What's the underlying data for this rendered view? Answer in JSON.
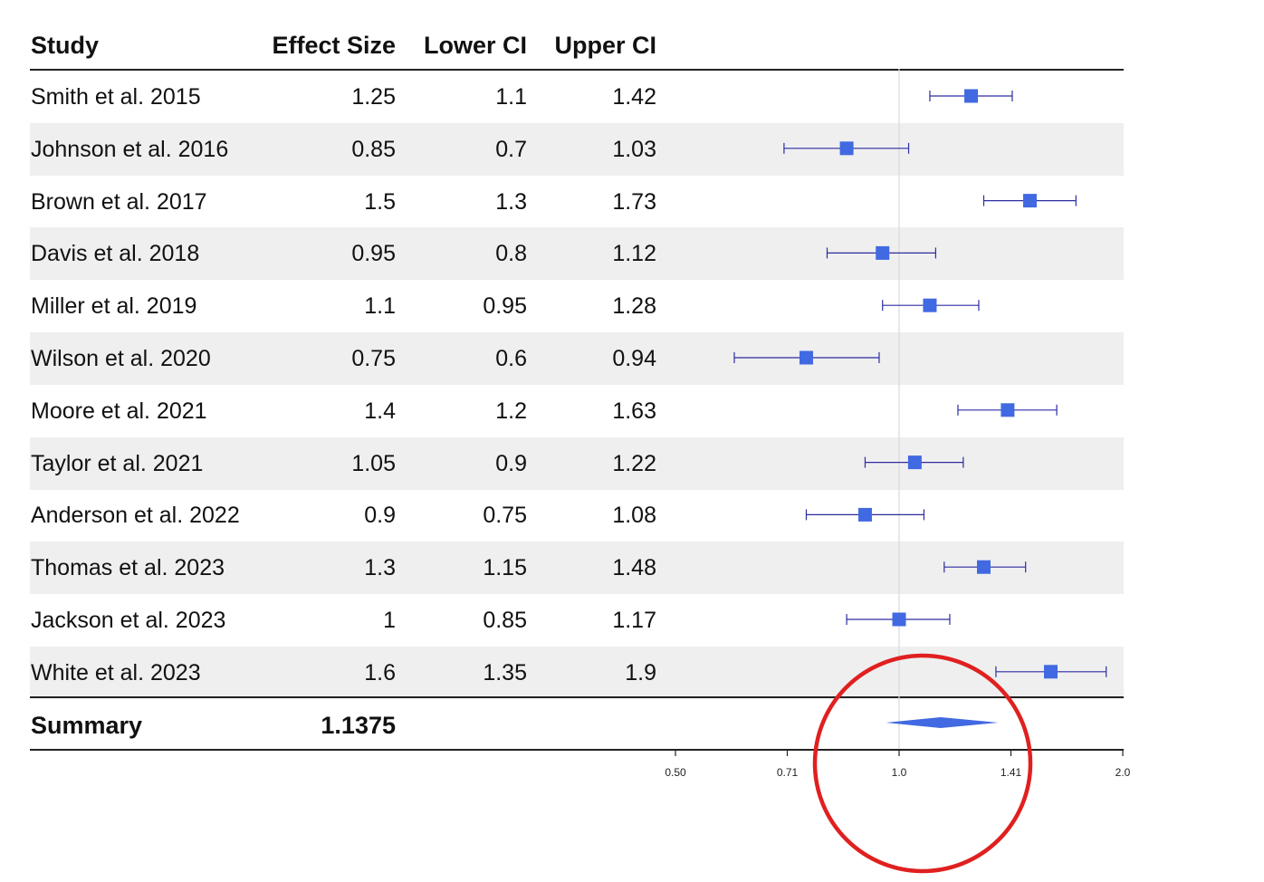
{
  "table": {
    "headers": {
      "study": "Study",
      "effect": "Effect Size",
      "lower": "Lower CI",
      "upper": "Upper CI"
    },
    "rows": [
      {
        "study": "Smith et al. 2015",
        "effect": "1.25",
        "lower": "1.1",
        "upper": "1.42"
      },
      {
        "study": "Johnson et al. 2016",
        "effect": "0.85",
        "lower": "0.7",
        "upper": "1.03"
      },
      {
        "study": "Brown et al. 2017",
        "effect": "1.5",
        "lower": "1.3",
        "upper": "1.73"
      },
      {
        "study": "Davis et al. 2018",
        "effect": "0.95",
        "lower": "0.8",
        "upper": "1.12"
      },
      {
        "study": "Miller et al. 2019",
        "effect": "1.1",
        "lower": "0.95",
        "upper": "1.28"
      },
      {
        "study": "Wilson et al. 2020",
        "effect": "0.75",
        "lower": "0.6",
        "upper": "0.94"
      },
      {
        "study": "Moore et al. 2021",
        "effect": "1.4",
        "lower": "1.2",
        "upper": "1.63"
      },
      {
        "study": "Taylor et al. 2021",
        "effect": "1.05",
        "lower": "0.9",
        "upper": "1.22"
      },
      {
        "study": "Anderson et al. 2022",
        "effect": "0.9",
        "lower": "0.75",
        "upper": "1.08"
      },
      {
        "study": "Thomas et al. 2023",
        "effect": "1.3",
        "lower": "1.15",
        "upper": "1.48"
      },
      {
        "study": "Jackson et al. 2023",
        "effect": "1",
        "lower": "0.85",
        "upper": "1.17"
      },
      {
        "study": "White et al. 2023",
        "effect": "1.6",
        "lower": "1.35",
        "upper": "1.9"
      }
    ],
    "summary": {
      "label": "Summary",
      "effect": "1.1375"
    }
  },
  "chart_data": {
    "type": "forest",
    "title": "",
    "xlabel": "",
    "ylabel": "",
    "x_scale": "log",
    "xlim": [
      0.5,
      2.0
    ],
    "x_ticks": [
      "0.50",
      "0.71",
      "1.0",
      "1.41",
      "2.0"
    ],
    "x_tick_values": [
      0.5,
      0.7071,
      1.0,
      1.4142,
      2.0
    ],
    "reference_line": 1.0,
    "categories": [
      "Smith et al. 2015",
      "Johnson et al. 2016",
      "Brown et al. 2017",
      "Davis et al. 2018",
      "Miller et al. 2019",
      "Wilson et al. 2020",
      "Moore et al. 2021",
      "Taylor et al. 2021",
      "Anderson et al. 2022",
      "Thomas et al. 2023",
      "Jackson et al. 2023",
      "White et al. 2023"
    ],
    "effect": [
      1.25,
      0.85,
      1.5,
      0.95,
      1.1,
      0.75,
      1.4,
      1.05,
      0.9,
      1.3,
      1.0,
      1.6
    ],
    "lower": [
      1.1,
      0.7,
      1.3,
      0.8,
      0.95,
      0.6,
      1.2,
      0.9,
      0.75,
      1.15,
      0.85,
      1.35
    ],
    "upper": [
      1.42,
      1.03,
      1.73,
      1.12,
      1.28,
      0.94,
      1.63,
      1.22,
      1.08,
      1.48,
      1.17,
      1.9
    ],
    "summary": {
      "effect": 1.1375,
      "lower": 0.96,
      "upper": 1.36
    },
    "grid": false,
    "legend": null
  },
  "colors": {
    "marker": "#4169e1",
    "ci_line": "#2c2ca0",
    "row_alt": "#efefef",
    "refline": "#d9d9d9",
    "annotation": "#e02020"
  }
}
